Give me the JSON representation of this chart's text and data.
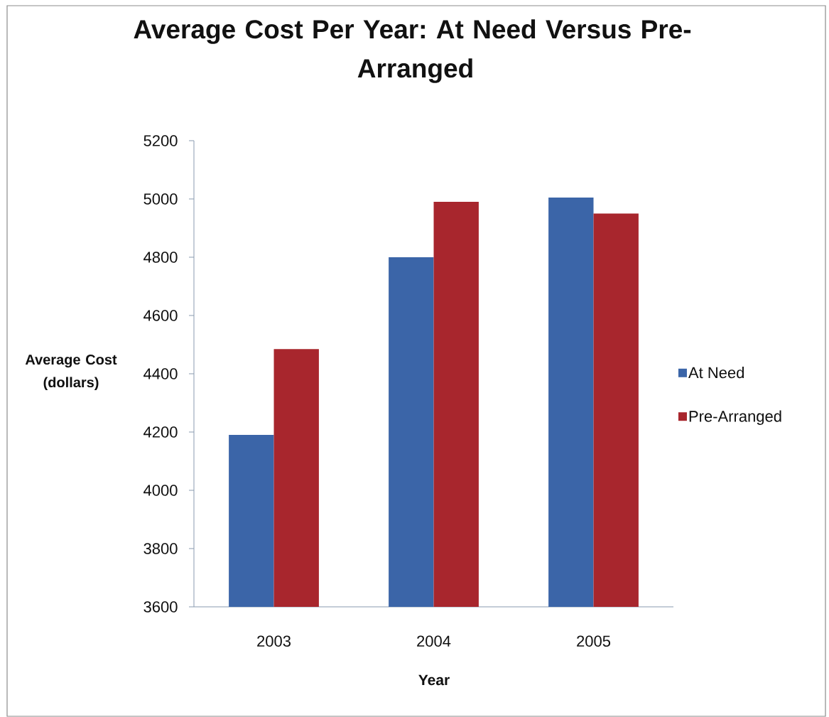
{
  "chart_data": {
    "type": "bar",
    "title": "Average Cost Per Year: At Need Versus Pre-Arranged",
    "xlabel": "Year",
    "ylabel": "Average Cost (dollars)",
    "categories": [
      "2003",
      "2004",
      "2005"
    ],
    "series": [
      {
        "name": "At Need",
        "color": "#3b65a8",
        "values": [
          4190,
          4800,
          5005
        ]
      },
      {
        "name": "Pre-Arranged",
        "color": "#a8262d",
        "values": [
          4485,
          4990,
          4950
        ]
      }
    ],
    "ylim": [
      3600,
      5200
    ],
    "yticks": [
      3600,
      3800,
      4000,
      4200,
      4400,
      4600,
      4800,
      5000,
      5200
    ],
    "legend": "right"
  }
}
